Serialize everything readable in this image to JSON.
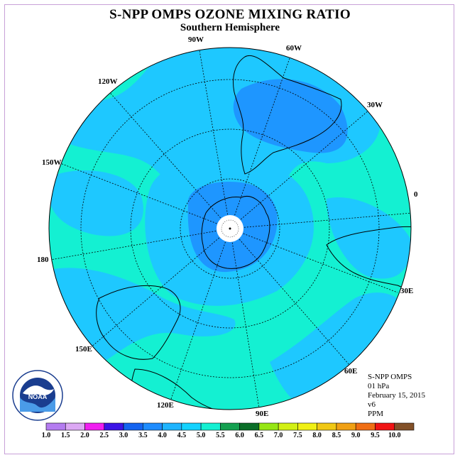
{
  "title": "S-NPP OMPS OZONE MIXING RATIO",
  "subtitle": "Southern Hemisphere",
  "longitude_labels": {
    "w90": "90W",
    "w60": "60W",
    "w30": "30W",
    "e0": "0",
    "e30": "30E",
    "e60": "60E",
    "e90": "90E",
    "e120": "120E",
    "e150": "150E",
    "d180": "180",
    "w150": "150W",
    "w120": "120W"
  },
  "info": {
    "instrument": "S-NPP OMPS",
    "level": "01 hPa",
    "date": "February 15, 2015",
    "version": "v6",
    "units": "PPM"
  },
  "logo": {
    "text": "NOAA",
    "ring_text": "NATIONAL OCEANIC AND ATMOSPHERIC ADMINISTRATION",
    "ring_text_bottom": "U.S. DEPARTMENT OF COMMERCE"
  },
  "colorbar": {
    "labels": [
      "1.0",
      "1.5",
      "2.0",
      "2.5",
      "3.0",
      "3.5",
      "4.0",
      "4.5",
      "5.0",
      "5.5",
      "6.0",
      "6.5",
      "7.0",
      "7.5",
      "8.0",
      "8.5",
      "9.0",
      "9.5",
      "10.0"
    ],
    "colors": [
      "#b47cf0",
      "#dca8f4",
      "#f01ef0",
      "#3c14e6",
      "#1464f0",
      "#1e8cff",
      "#1eb4ff",
      "#14d2ff",
      "#14f0d2",
      "#14a050",
      "#0a6e28",
      "#96e614",
      "#d2f014",
      "#f0f014",
      "#f0c814",
      "#f0a014",
      "#f06e14",
      "#f01414",
      "#825028"
    ]
  },
  "map": {
    "projection": "south polar stereographic",
    "field_colors": {
      "low": "#1ee6ff",
      "mid": "#14f0d2",
      "high": "#1eb4ff",
      "higher": "#1e8cff"
    }
  }
}
